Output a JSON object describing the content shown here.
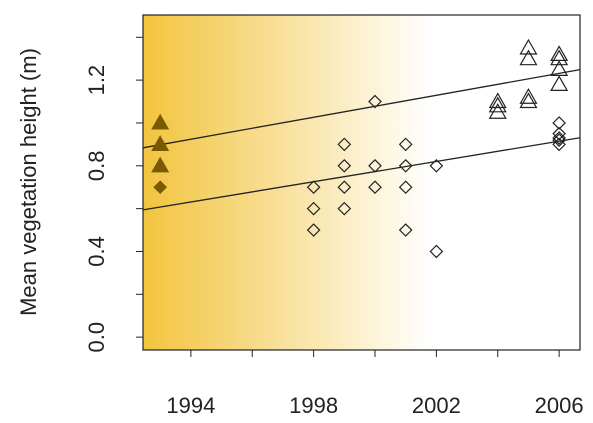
{
  "chart_data": {
    "type": "scatter",
    "y_label": "Mean vegetation height (m)",
    "xlim": [
      1992.44,
      2006.68
    ],
    "ylim": [
      -0.06,
      1.504
    ],
    "xticks": [
      1994,
      1998,
      2002,
      2006
    ],
    "xminorticks": [
      1996,
      2000,
      2004
    ],
    "yticks": [
      {
        "value": 0,
        "label": "0.0"
      },
      0.4,
      0.8,
      1.2
    ],
    "yminorticks": [
      0.2,
      0.6,
      1.0,
      1.4
    ],
    "background_gradient": [
      "#f2c43e",
      "#ffffff"
    ],
    "series": [
      {
        "marker": "triangle",
        "filled": true,
        "color": "#7a5a00",
        "x": [
          1993,
          1993,
          1993
        ],
        "values": [
          1.0,
          0.9,
          0.8
        ]
      },
      {
        "marker": "diamond",
        "filled": true,
        "color": "#7a5a00",
        "x": [
          1993
        ],
        "values": [
          0.7
        ]
      },
      {
        "marker": "diamond",
        "filled": false,
        "color": "#222222",
        "x": [
          1998,
          1998,
          1998,
          1999,
          1999,
          1999,
          1999,
          2000,
          2000,
          2000,
          2001,
          2001,
          2001,
          2001,
          2002,
          2002,
          2006,
          2006,
          2006,
          2006,
          2006
        ],
        "values": [
          0.7,
          0.6,
          0.5,
          0.9,
          0.8,
          0.7,
          0.6,
          1.1,
          0.8,
          0.7,
          0.9,
          0.8,
          0.7,
          0.5,
          0.8,
          0.4,
          1.0,
          0.95,
          0.93,
          0.92,
          0.9
        ]
      },
      {
        "marker": "triangle",
        "filled": false,
        "color": "#222222",
        "x": [
          2004,
          2004,
          2004,
          2005,
          2005,
          2005,
          2005,
          2006,
          2006,
          2006,
          2006
        ],
        "values": [
          1.1,
          1.08,
          1.05,
          1.35,
          1.3,
          1.12,
          1.1,
          1.32,
          1.3,
          1.25,
          1.18
        ]
      }
    ],
    "lines": [
      {
        "color": "#222222",
        "x": [
          1992.44,
          2006.68
        ],
        "values": [
          0.884,
          1.249
        ]
      },
      {
        "color": "#222222",
        "x": [
          1992.44,
          2006.68
        ],
        "values": [
          0.594,
          0.931
        ]
      }
    ]
  }
}
